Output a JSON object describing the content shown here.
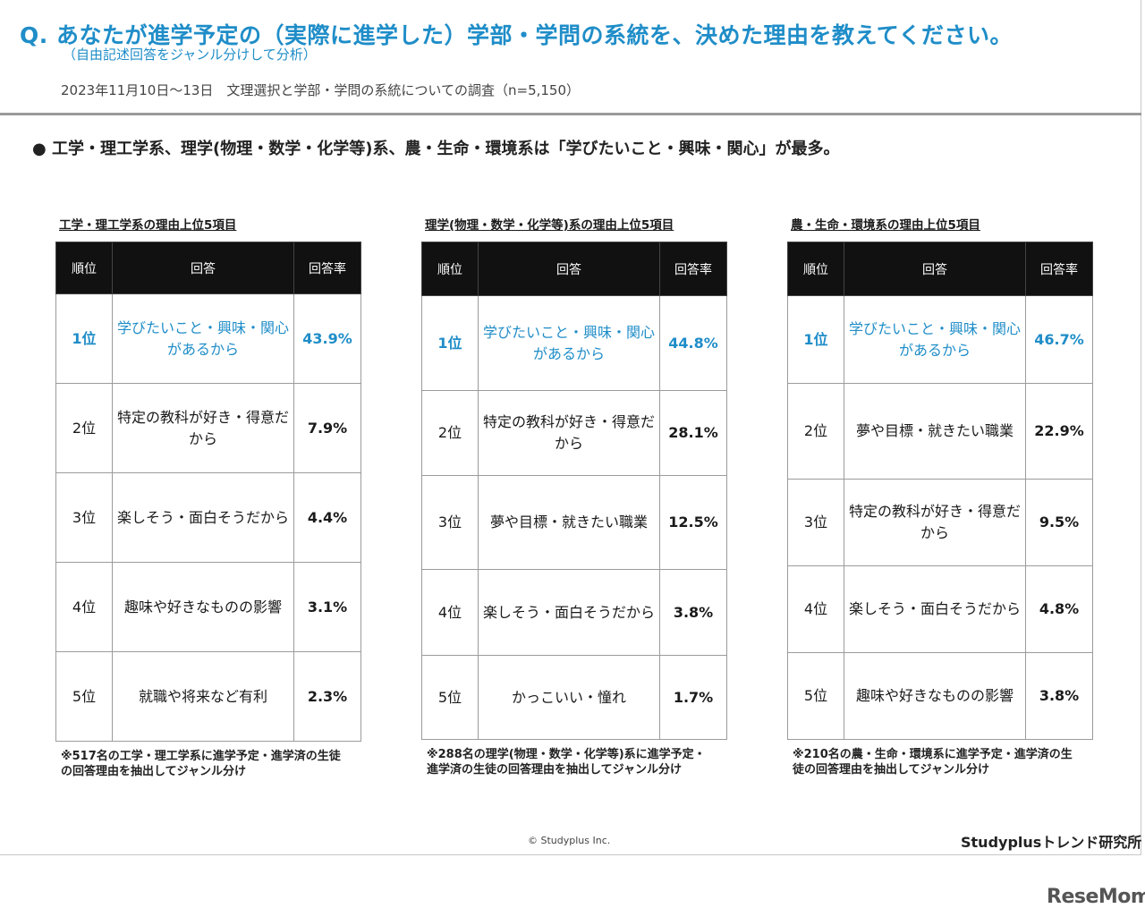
{
  "header": {
    "question": "Q. あなたが進学予定の（実際に進学した）学部・学問の系統を、決めた理由を教えてください。",
    "subtitle": "（自由記述回答をジャンル分けして分析）",
    "survey": "2023年11月10日〜13日　文理選択と学部・学問の系統についての調査（n=5,150）"
  },
  "summary": "工学・理工学系、理学(物理・数学・化学等)系、農・生命・環境系は「学びたいこと・興味・関心」が最多。",
  "bullet_symbol": "●",
  "table_headers": {
    "rank": "順位",
    "answer": "回答",
    "rate": "回答率"
  },
  "panels": [
    {
      "title": "工学・理工学系の理由上位5項目",
      "rows": [
        {
          "rank": "1位",
          "answer": "学びたいこと・興味・関心があるから",
          "rate": "43.9%"
        },
        {
          "rank": "2位",
          "answer": "特定の教科が好き・得意だから",
          "rate": "7.9%"
        },
        {
          "rank": "3位",
          "answer": "楽しそう・面白そうだから",
          "rate": "4.4%"
        },
        {
          "rank": "4位",
          "answer": "趣味や好きなものの影響",
          "rate": "3.1%"
        },
        {
          "rank": "5位",
          "answer": "就職や将来など有利",
          "rate": "2.3%"
        }
      ],
      "note": "※517名の工学・理工学系に進学予定・進学済の生徒の回答理由を抽出してジャンル分け"
    },
    {
      "title": "理学(物理・数学・化学等)系の理由上位5項目",
      "rows": [
        {
          "rank": "1位",
          "answer": "学びたいこと・興味・関心があるから",
          "rate": "44.8%"
        },
        {
          "rank": "2位",
          "answer": "特定の教科が好き・得意だから",
          "rate": "28.1%"
        },
        {
          "rank": "3位",
          "answer": "夢や目標・就きたい職業",
          "rate": "12.5%"
        },
        {
          "rank": "4位",
          "answer": "楽しそう・面白そうだから",
          "rate": "3.8%"
        },
        {
          "rank": "5位",
          "answer": "かっこいい・憧れ",
          "rate": "1.7%"
        }
      ],
      "note": "※288名の理学(物理・数学・化学等)系に進学予定・進学済の生徒の回答理由を抽出してジャンル分け"
    },
    {
      "title": "農・生命・環境系の理由上位5項目",
      "rows": [
        {
          "rank": "1位",
          "answer": "学びたいこと・興味・関心があるから",
          "rate": "46.7%"
        },
        {
          "rank": "2位",
          "answer": "夢や目標・就きたい職業",
          "rate": "22.9%"
        },
        {
          "rank": "3位",
          "answer": "特定の教科が好き・得意だから",
          "rate": "9.5%"
        },
        {
          "rank": "4位",
          "answer": "楽しそう・面白そうだから",
          "rate": "4.8%"
        },
        {
          "rank": "5位",
          "answer": "趣味や好きなものの影響",
          "rate": "3.8%"
        }
      ],
      "note": "※210名の農・生命・環境系に進学予定・進学済の生徒の回答理由を抽出してジャンル分け"
    }
  ],
  "footer": {
    "copyright": "© Studyplus Inc.",
    "brand": "Studyplusトレンド研究所",
    "watermark": "ReseMom"
  },
  "colors": {
    "accent": "#1f8dc8",
    "header_bg": "#111111"
  }
}
